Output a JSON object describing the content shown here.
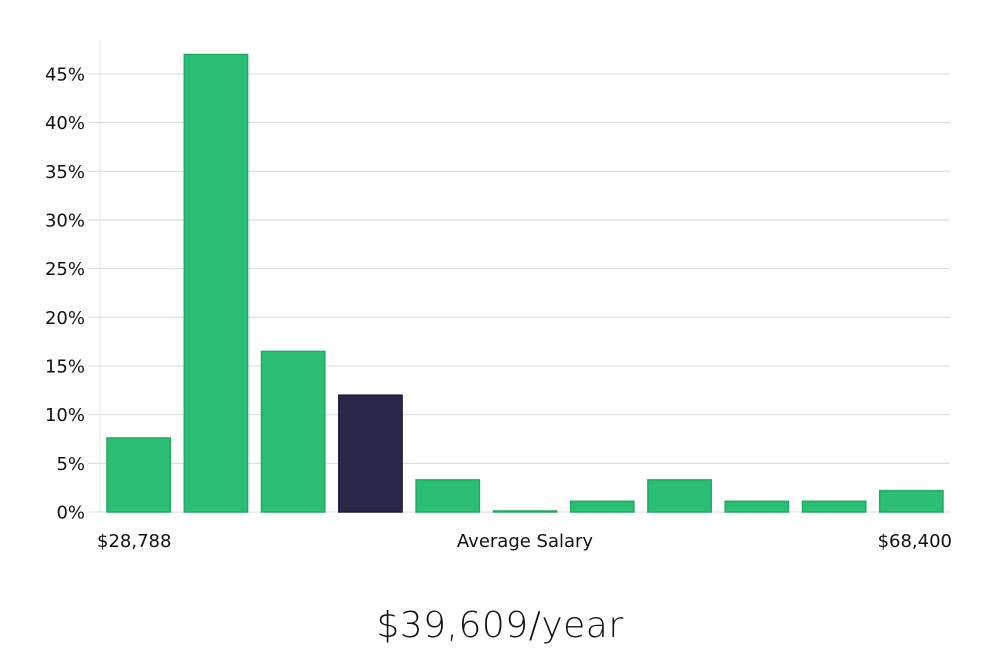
{
  "chart_data": {
    "type": "bar",
    "categories": [
      "1",
      "2",
      "3",
      "4",
      "5",
      "6",
      "7",
      "8",
      "9",
      "10",
      "11"
    ],
    "values": [
      7.6,
      47.0,
      16.5,
      12.0,
      3.3,
      0.1,
      1.1,
      3.3,
      1.1,
      1.1,
      2.2
    ],
    "highlight_index": 3,
    "ylim": [
      0,
      49
    ],
    "yticks": [
      0,
      5,
      10,
      15,
      20,
      25,
      30,
      35,
      40,
      45
    ],
    "ytick_suffix": "%",
    "grid": true,
    "colors": {
      "bar": "#2bbf76",
      "bar_edge": "#22a865",
      "highlight": "#2a2849",
      "grid": "#d9d9d9"
    },
    "x_min_label": "$28,788",
    "x_center_label": "Average Salary",
    "x_max_label": "$68,400"
  },
  "salary_text": "$39,609/year"
}
